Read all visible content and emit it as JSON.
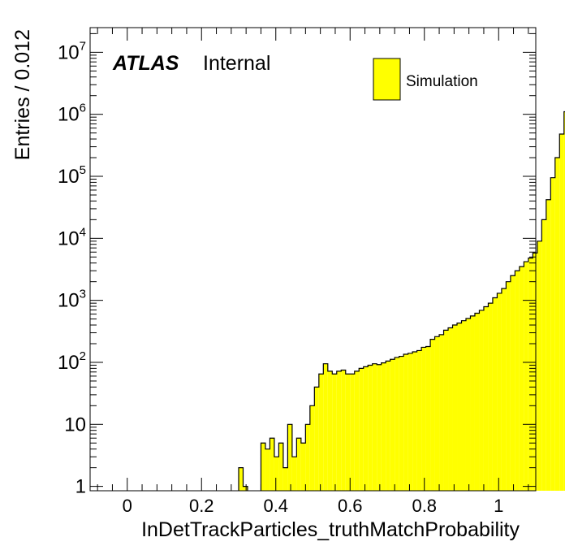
{
  "chart_data": {
    "type": "histogram",
    "xlabel": "InDetTrackParticles_truthMatchProbability",
    "ylabel": "Entries / 0.012",
    "xlim": [
      -0.1,
      1.1
    ],
    "ylim": [
      0.85,
      25000000
    ],
    "yscale": "log",
    "x_ticks": [
      {
        "value": 0,
        "label": "0"
      },
      {
        "value": 0.2,
        "label": "0.2"
      },
      {
        "value": 0.4,
        "label": "0.4"
      },
      {
        "value": 0.6,
        "label": "0.6"
      },
      {
        "value": 0.8,
        "label": "0.8"
      },
      {
        "value": 1,
        "label": "1"
      }
    ],
    "y_ticks": [
      {
        "value": 1,
        "base": "1",
        "exp": ""
      },
      {
        "value": 10,
        "base": "10",
        "exp": ""
      },
      {
        "value": 100,
        "base": "10",
        "exp": "2"
      },
      {
        "value": 1000,
        "base": "10",
        "exp": "3"
      },
      {
        "value": 10000,
        "base": "10",
        "exp": "4"
      },
      {
        "value": 100000,
        "base": "10",
        "exp": "5"
      },
      {
        "value": 1000000,
        "base": "10",
        "exp": "6"
      },
      {
        "value": 10000000,
        "base": "10",
        "exp": "7"
      }
    ],
    "bin_width": 0.012,
    "bin_start": 0.3,
    "series": [
      {
        "name": "Simulation",
        "color": "#ffff00",
        "edge_color": "#000000",
        "values": [
          2,
          1,
          0,
          0,
          0,
          5,
          4,
          6,
          3,
          5,
          2,
          10,
          3,
          6,
          5,
          10,
          20,
          40,
          65,
          95,
          72,
          65,
          72,
          75,
          65,
          65,
          72,
          80,
          85,
          90,
          95,
          92,
          98,
          105,
          112,
          120,
          125,
          135,
          140,
          148,
          155,
          175,
          180,
          235,
          260,
          280,
          330,
          360,
          400,
          430,
          470,
          510,
          560,
          620,
          690,
          790,
          900,
          1100,
          1300,
          1550,
          2000,
          2500,
          3000,
          3500,
          4200,
          4800,
          5800,
          9000,
          20000,
          42000,
          95000,
          200000,
          480000,
          1100000
        ]
      }
    ]
  },
  "labels": {
    "atlas": "ATLAS",
    "status": "Internal",
    "legend": "Simulation"
  }
}
